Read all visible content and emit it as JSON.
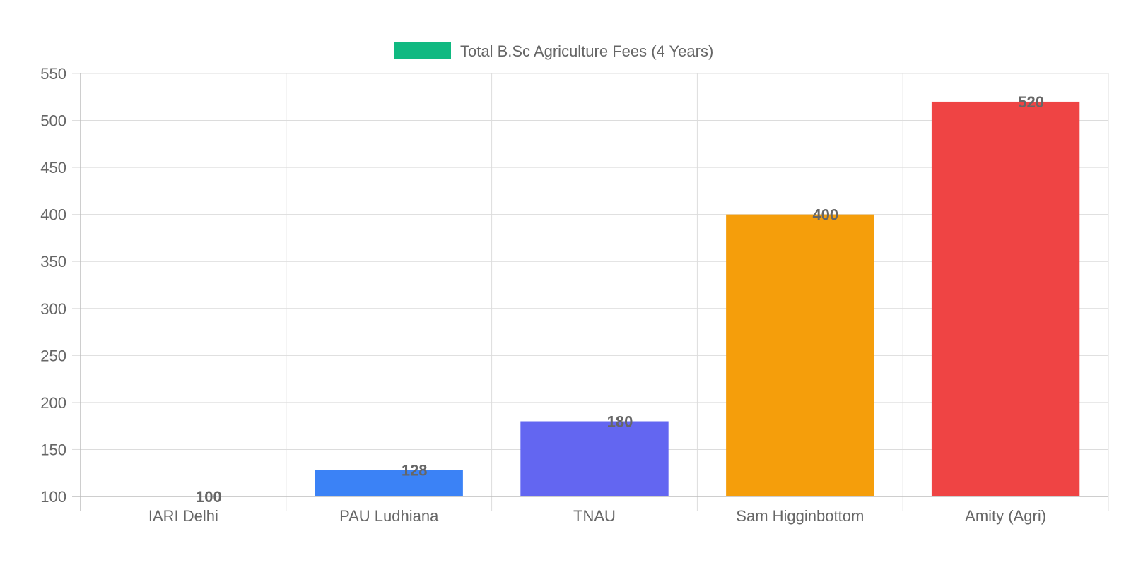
{
  "chart_data": {
    "type": "bar",
    "categories": [
      "IARI Delhi",
      "PAU Ludhiana",
      "TNAU",
      "Sam Higginbottom",
      "Amity (Agri)"
    ],
    "series": [
      {
        "name": "Total B.Sc Agriculture Fees (4 Years)",
        "values": [
          100,
          128,
          180,
          400,
          520
        ],
        "colors": [
          "#10B981",
          "#3B82F6",
          "#6366F1",
          "#F59E0B",
          "#EF4444"
        ]
      }
    ],
    "legend_color": "#10B981",
    "data_labels": [
      "100",
      "128",
      "180",
      "400",
      "520"
    ],
    "y_ticks": [
      "100",
      "150",
      "200",
      "250",
      "300",
      "350",
      "400",
      "450",
      "500",
      "550"
    ],
    "ylim": [
      100,
      550
    ],
    "grid": true,
    "legend_position": "top-center"
  }
}
